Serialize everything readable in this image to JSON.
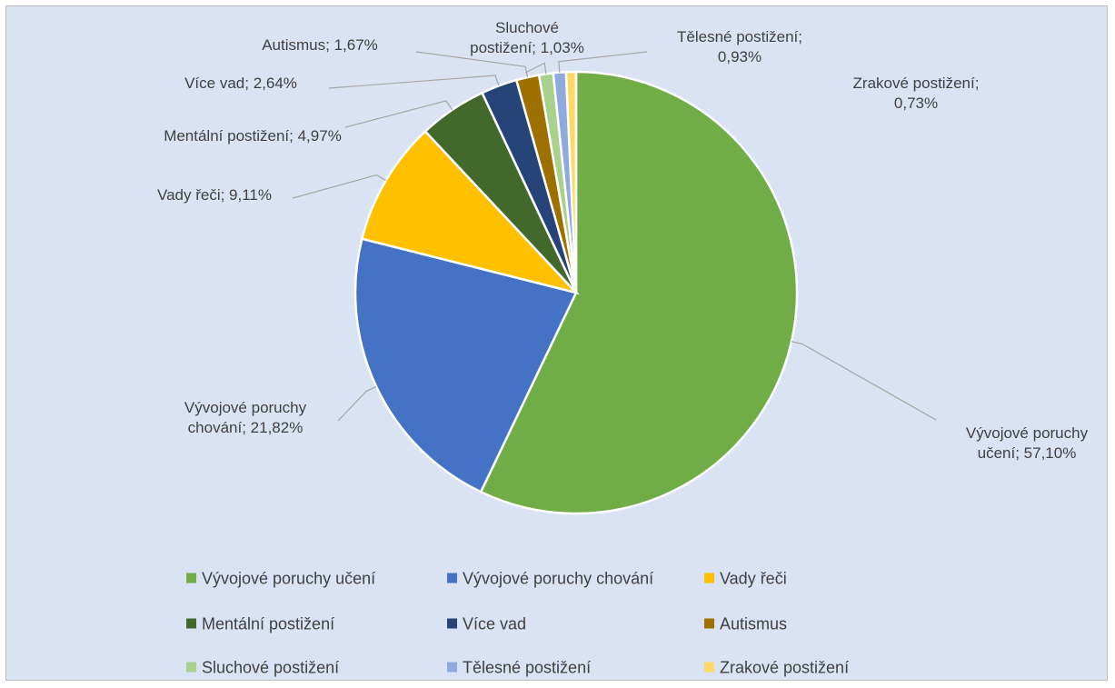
{
  "chart_data": {
    "type": "pie",
    "categories": [
      "Vývojové poruchy učení",
      "Vývojové poruchy chování",
      "Vady řeči",
      "Mentální postižení",
      "Více vad",
      "Autismus",
      "Sluchové postižení",
      "Tělesné postižení",
      "Zrakové postižení"
    ],
    "values": [
      57.1,
      21.82,
      9.11,
      4.97,
      2.64,
      1.67,
      1.03,
      0.93,
      0.73
    ],
    "value_labels": [
      "Vývojové poruchy učení; 57,10%",
      "Vývojové poruchy chování; 21,82%",
      "Vady řeči; 9,11%",
      "Mentální postižení; 4,97%",
      "Více vad; 2,64%",
      "Autismus; 1,67%",
      "Sluchové postižení; 1,03%",
      "Tělesné postižení; 0,93%",
      "Zrakové postižení; 0,73%"
    ],
    "colors": [
      "#70ad47",
      "#4472c4",
      "#ffc000",
      "#43682b",
      "#264478",
      "#9e7000",
      "#a9d18e",
      "#8faadc",
      "#ffd966"
    ],
    "legend": "bottom"
  }
}
